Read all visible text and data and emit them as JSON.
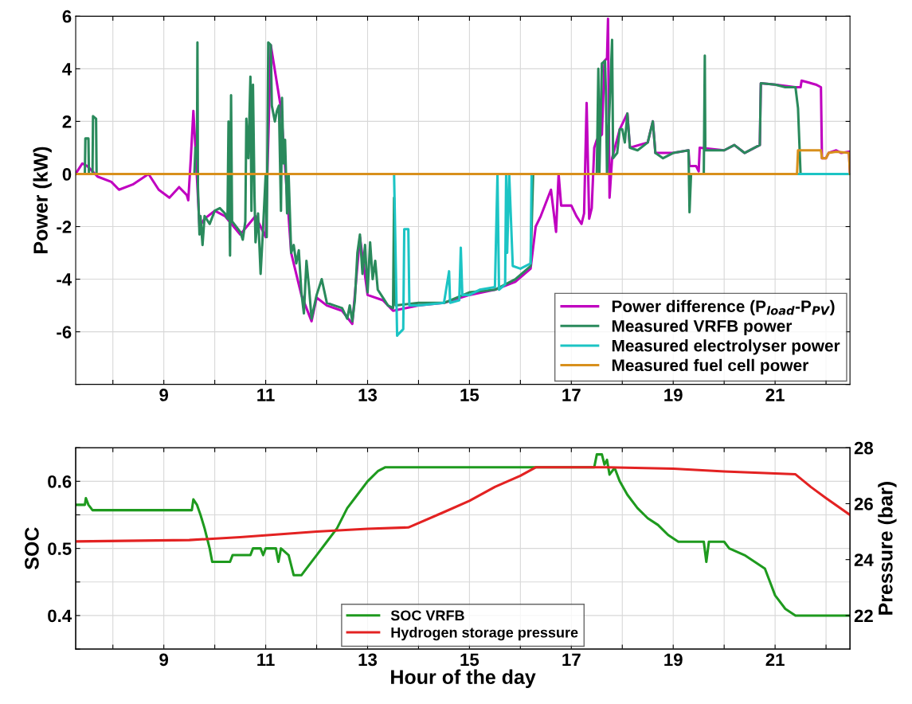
{
  "chart_data": [
    {
      "type": "line",
      "ylabel": "Power (kW)",
      "xlim": [
        7.27,
        22.47
      ],
      "ylim": [
        -8,
        6
      ],
      "xticks": [
        {
          "value": 8,
          "label": null
        },
        9,
        {
          "value": 10,
          "label": null
        },
        11,
        {
          "value": 12,
          "label": null
        },
        13,
        {
          "value": 14,
          "label": null
        },
        15,
        {
          "value": 16,
          "label": null
        },
        17,
        {
          "value": 18,
          "label": null
        },
        19,
        {
          "value": 20,
          "label": null
        },
        21,
        {
          "value": 22,
          "label": null
        }
      ],
      "yticks": [
        {
          "value": -8,
          "label": null
        },
        -6,
        -4,
        -2,
        0,
        2,
        4,
        6
      ],
      "grid": true,
      "legend": "bottom right",
      "series": [
        {
          "name": "Power difference (P$_{load}$-P$_{PV}$)",
          "color": "#c000c0",
          "x": [
            7.27,
            7.3,
            7.4,
            7.5,
            7.7,
            7.97,
            8.12,
            8.39,
            8.7,
            8.9,
            9.11,
            9.3,
            9.45,
            9.48,
            9.53,
            9.58,
            9.62,
            9.7,
            9.8,
            10.0,
            10.2,
            10.5,
            10.8,
            11.0,
            11.1,
            11.3,
            11.5,
            11.7,
            11.9,
            12.0,
            12.2,
            12.5,
            12.7,
            12.85,
            13.0,
            13.3,
            13.5,
            14.0,
            14.5,
            15.0,
            15.5,
            15.9,
            16.2,
            16.3,
            16.4,
            16.5,
            16.6,
            16.7,
            16.75,
            16.8,
            17.0,
            17.1,
            17.2,
            17.25,
            17.3,
            17.35,
            17.4,
            17.45,
            17.5,
            17.6,
            17.65,
            17.7,
            17.72,
            17.75,
            17.8,
            17.95,
            18.1,
            18.15,
            18.5,
            18.6,
            18.65,
            19.0,
            19.3,
            19.32,
            19.45,
            19.5,
            19.52,
            20.0,
            20.2,
            20.4,
            20.7,
            20.72,
            21.0,
            21.4,
            21.5,
            21.52,
            21.8,
            21.9,
            21.92,
            22.0,
            22.05,
            22.2,
            22.3,
            22.45,
            22.47
          ],
          "values": [
            0.0,
            0.1,
            0.4,
            0.3,
            -0.1,
            -0.3,
            -0.6,
            -0.4,
            0.0,
            -0.6,
            -0.9,
            -0.5,
            -0.8,
            -1.0,
            0.6,
            2.4,
            1.0,
            -2.0,
            -1.7,
            -1.4,
            -1.6,
            -2.3,
            -1.6,
            -2.4,
            4.9,
            2.5,
            -3.0,
            -4.6,
            -5.6,
            -4.7,
            -5.0,
            -5.2,
            -5.7,
            -2.4,
            -4.6,
            -4.8,
            -5.2,
            -5.0,
            -4.9,
            -4.6,
            -4.4,
            -4.1,
            -3.6,
            -2.0,
            -1.6,
            -1.1,
            -0.6,
            -2.2,
            0.0,
            -1.2,
            -1.2,
            -1.6,
            -1.9,
            -1.5,
            2.7,
            -1.7,
            -1.3,
            1.0,
            1.3,
            1.5,
            4.3,
            4.4,
            5.9,
            -0.9,
            0.6,
            1.7,
            2.3,
            1.0,
            1.2,
            2.0,
            0.8,
            0.8,
            0.9,
            0.3,
            0.3,
            0.1,
            1.0,
            0.9,
            1.1,
            0.8,
            1.1,
            3.45,
            3.4,
            3.3,
            3.3,
            3.55,
            3.4,
            3.3,
            0.6,
            0.6,
            0.8,
            0.9,
            0.8,
            0.85,
            0.0
          ]
        },
        {
          "name": "Measured VRFB power",
          "color": "#2a8a5c",
          "x": [
            7.27,
            7.45,
            7.46,
            7.52,
            7.53,
            7.6,
            7.61,
            7.67,
            7.68,
            9.6,
            9.62,
            9.65,
            9.66,
            9.67,
            9.7,
            9.72,
            9.76,
            9.8,
            9.9,
            10.0,
            10.1,
            10.2,
            10.25,
            10.27,
            10.3,
            10.32,
            10.34,
            10.5,
            10.55,
            10.6,
            10.62,
            10.66,
            10.7,
            10.72,
            10.75,
            10.78,
            10.8,
            10.85,
            10.9,
            10.95,
            11.0,
            11.02,
            11.05,
            11.1,
            11.12,
            11.18,
            11.22,
            11.26,
            11.3,
            11.32,
            11.35,
            11.38,
            11.42,
            11.45,
            11.5,
            11.55,
            11.6,
            11.65,
            11.7,
            11.75,
            11.8,
            11.85,
            11.9,
            12.0,
            12.1,
            12.2,
            12.35,
            12.5,
            12.6,
            12.65,
            12.7,
            12.75,
            12.8,
            12.85,
            12.9,
            12.95,
            13.0,
            13.05,
            13.1,
            13.15,
            13.2,
            13.3,
            13.4,
            13.5,
            13.52,
            13.55,
            14.0,
            14.5,
            15.0,
            15.5,
            15.9,
            16.2,
            16.25,
            17.5,
            17.53,
            17.55,
            17.6,
            17.66,
            17.68,
            17.7,
            17.8,
            17.82,
            17.9,
            17.95,
            18.0,
            18.05,
            18.1,
            18.15,
            18.3,
            18.5,
            18.6,
            18.65,
            18.8,
            19.0,
            19.3,
            19.32,
            19.35,
            19.6,
            19.62,
            19.63,
            20.0,
            20.2,
            20.4,
            20.6,
            20.7,
            20.72,
            21.0,
            21.2,
            21.4,
            21.45,
            21.5,
            22.47
          ],
          "values": [
            0,
            0,
            1.35,
            1.35,
            0,
            0,
            2.2,
            2.1,
            0,
            0,
            1.0,
            0.6,
            5.0,
            -0.5,
            -2.3,
            -1.6,
            -2.7,
            -1.6,
            -1.9,
            -1.4,
            -1.3,
            -1.5,
            -1.7,
            2.0,
            -3.1,
            3.0,
            -1.8,
            -2.2,
            -2.5,
            -1.8,
            2.1,
            0.6,
            3.7,
            -1.4,
            3.4,
            -0.8,
            -2.6,
            -1.5,
            -3.8,
            -2.0,
            0,
            -2.4,
            5.0,
            4.9,
            2.6,
            2.0,
            2.4,
            2.6,
            -1.4,
            2.9,
            0.4,
            1.3,
            -1.5,
            0,
            -3.0,
            -2.7,
            -3.4,
            -2.9,
            -4.5,
            -5.3,
            -3.3,
            -4.3,
            -5.5,
            -4.6,
            -4.0,
            -4.9,
            -5.0,
            -5.1,
            -5.5,
            -5.0,
            -5.6,
            -4.8,
            -3.0,
            -2.3,
            -3.8,
            -2.7,
            -4.5,
            -2.6,
            -4.0,
            -3.3,
            -4.4,
            -4.7,
            -5.0,
            -5.1,
            -0.9,
            -5.0,
            -4.9,
            -4.9,
            -4.5,
            -4.4,
            -4.0,
            -3.5,
            0,
            0,
            4.0,
            0,
            4.2,
            4.3,
            3.0,
            0,
            5.1,
            0.6,
            0.8,
            1.7,
            1.7,
            1.2,
            2.3,
            1.0,
            0.9,
            1.2,
            2.0,
            0.8,
            0.6,
            0.8,
            0.9,
            -1.45,
            0,
            0,
            4.5,
            0.9,
            0.9,
            1.1,
            0.8,
            1.0,
            1.1,
            3.45,
            3.4,
            3.3,
            3.3,
            2.5,
            0,
            0
          ]
        },
        {
          "name": "Measured electrolyser power",
          "color": "#1cc4c4",
          "x": [
            7.27,
            13.52,
            13.58,
            13.6,
            13.7,
            13.72,
            13.8,
            13.82,
            14.0,
            14.5,
            14.6,
            14.62,
            14.8,
            14.83,
            14.86,
            15.0,
            15.2,
            15.5,
            15.55,
            15.58,
            15.7,
            15.72,
            15.74,
            15.78,
            15.85,
            16.0,
            16.1,
            16.2,
            16.22,
            22.47
          ],
          "values": [
            0,
            0,
            -6.15,
            -6.1,
            -5.9,
            -2.1,
            -2.1,
            -5.0,
            -5.0,
            -4.9,
            -3.7,
            -4.9,
            -4.8,
            -2.8,
            -4.6,
            -4.6,
            -4.4,
            -4.3,
            0,
            -4.4,
            -4.2,
            0,
            -3.0,
            0,
            -3.5,
            -3.6,
            -3.5,
            -3.4,
            0,
            0
          ]
        },
        {
          "name": "Measured fuel cell power",
          "color": "#d8901c",
          "x": [
            7.27,
            21.43,
            21.45,
            21.9,
            21.92,
            22.0,
            22.05,
            22.2,
            22.45,
            22.47
          ],
          "values": [
            0,
            0,
            0.9,
            0.9,
            0.6,
            0.6,
            0.8,
            0.85,
            0.8,
            0
          ]
        }
      ]
    },
    {
      "type": "line",
      "xlabel": "Hour of the day",
      "ylabel": "SOC",
      "y2label": "Pressure (bar)",
      "xlim": [
        7.27,
        22.47
      ],
      "ylim": [
        0.35,
        0.65
      ],
      "y2lim": [
        20.8,
        28
      ],
      "xticks": [
        {
          "value": 8,
          "label": null
        },
        9,
        {
          "value": 10,
          "label": null
        },
        11,
        {
          "value": 12,
          "label": null
        },
        13,
        {
          "value": 14,
          "label": null
        },
        15,
        {
          "value": 16,
          "label": null
        },
        17,
        {
          "value": 18,
          "label": null
        },
        19,
        {
          "value": 20,
          "label": null
        },
        21,
        {
          "value": 22,
          "label": null
        }
      ],
      "yticks": [
        {
          "value": 0.35,
          "label": null
        },
        0.4,
        {
          "value": 0.45,
          "label": null
        },
        0.5,
        {
          "value": 0.55,
          "label": null
        },
        0.6,
        {
          "value": 0.65,
          "label": null
        }
      ],
      "y2ticks": [
        22,
        24,
        26,
        28
      ],
      "grid": true,
      "legend": "bottom",
      "series": [
        {
          "name": "SOC VRFB",
          "color": "#1e9a1e",
          "x": [
            7.27,
            7.45,
            7.47,
            7.52,
            7.6,
            9.55,
            9.58,
            9.65,
            9.72,
            9.8,
            9.9,
            9.95,
            10.3,
            10.35,
            10.7,
            10.75,
            10.9,
            10.95,
            11.0,
            11.2,
            11.25,
            11.3,
            11.45,
            11.55,
            11.7,
            11.8,
            12.0,
            12.2,
            12.4,
            12.6,
            12.8,
            13.0,
            13.2,
            13.35,
            17.45,
            17.5,
            17.6,
            17.65,
            17.7,
            17.75,
            17.85,
            17.95,
            18.1,
            18.3,
            18.5,
            18.7,
            18.9,
            19.1,
            19.6,
            19.65,
            19.7,
            20.0,
            20.1,
            20.4,
            20.6,
            20.8,
            20.9,
            21.0,
            21.2,
            21.4,
            22.47
          ],
          "values": [
            0.565,
            0.565,
            0.575,
            0.565,
            0.557,
            0.557,
            0.573,
            0.565,
            0.55,
            0.53,
            0.5,
            0.48,
            0.48,
            0.49,
            0.49,
            0.5,
            0.5,
            0.49,
            0.5,
            0.5,
            0.48,
            0.5,
            0.49,
            0.46,
            0.46,
            0.47,
            0.49,
            0.51,
            0.53,
            0.56,
            0.58,
            0.6,
            0.615,
            0.621,
            0.621,
            0.64,
            0.64,
            0.625,
            0.632,
            0.61,
            0.62,
            0.6,
            0.58,
            0.56,
            0.545,
            0.535,
            0.52,
            0.51,
            0.51,
            0.48,
            0.51,
            0.51,
            0.5,
            0.49,
            0.48,
            0.47,
            0.45,
            0.43,
            0.41,
            0.4,
            0.4
          ]
        },
        {
          "name": "Hydrogen storage pressure",
          "color": "#e32222",
          "axis": "y2",
          "x": [
            7.27,
            9.5,
            10.5,
            11.25,
            12.0,
            13.0,
            13.8,
            14.5,
            15.0,
            15.5,
            16.0,
            16.3,
            17.7,
            19.0,
            20.0,
            21.4,
            21.7,
            22.0,
            22.47
          ],
          "values": [
            24.65,
            24.7,
            24.8,
            24.9,
            25.0,
            25.1,
            25.15,
            25.7,
            26.1,
            26.6,
            27.0,
            27.3,
            27.3,
            27.25,
            27.15,
            27.05,
            26.6,
            26.2,
            25.6
          ]
        }
      ]
    }
  ]
}
